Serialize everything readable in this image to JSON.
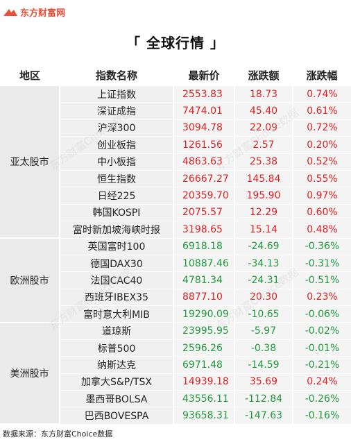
{
  "brand": {
    "logo_text": "东方财富网"
  },
  "title": "「 全球行情 」",
  "columns": [
    "地区",
    "指数名称",
    "最新价",
    "涨跌额",
    "涨跌幅"
  ],
  "colors": {
    "up": "#e02020",
    "down": "#1f9a3a",
    "brand": "#e8503a"
  },
  "regions": [
    {
      "name": "亚太股市",
      "rows": [
        {
          "name": "上证指数",
          "price": "2553.83",
          "change": "18.73",
          "pct": "0.74%",
          "dir": "up"
        },
        {
          "name": "深证成指",
          "price": "7474.01",
          "change": "45.40",
          "pct": "0.61%",
          "dir": "up"
        },
        {
          "name": "沪深300",
          "price": "3094.78",
          "change": "22.09",
          "pct": "0.72%",
          "dir": "up"
        },
        {
          "name": "创业板指",
          "price": "1261.56",
          "change": "2.57",
          "pct": "0.20%",
          "dir": "up"
        },
        {
          "name": "中小板指",
          "price": "4863.63",
          "change": "25.38",
          "pct": "0.52%",
          "dir": "up"
        },
        {
          "name": "恒生指数",
          "price": "26667.27",
          "change": "145.84",
          "pct": "0.55%",
          "dir": "up"
        },
        {
          "name": "日经225",
          "price": "20359.70",
          "change": "195.90",
          "pct": "0.97%",
          "dir": "up"
        },
        {
          "name": "韩国KOSPI",
          "price": "2075.57",
          "change": "12.29",
          "pct": "0.60%",
          "dir": "up"
        },
        {
          "name": "富时新加坡海峡时报",
          "price": "3198.65",
          "change": "15.14",
          "pct": "0.48%",
          "dir": "up"
        }
      ]
    },
    {
      "name": "欧洲股市",
      "rows": [
        {
          "name": "英国富时100",
          "price": "6918.18",
          "change": "-24.69",
          "pct": "-0.36%",
          "dir": "down"
        },
        {
          "name": "德国DAX30",
          "price": "10887.46",
          "change": "-34.13",
          "pct": "-0.31%",
          "dir": "down"
        },
        {
          "name": "法国CAC40",
          "price": "4781.34",
          "change": "-24.31",
          "pct": "-0.51%",
          "dir": "down"
        },
        {
          "name": "西班牙IBEX35",
          "price": "8877.10",
          "change": "20.30",
          "pct": "0.23%",
          "dir": "up"
        },
        {
          "name": "富时意大利MIB",
          "price": "19290.09",
          "change": "-10.65",
          "pct": "-0.06%",
          "dir": "down"
        }
      ]
    },
    {
      "name": "美洲股市",
      "rows": [
        {
          "name": "道琼斯",
          "price": "23995.95",
          "change": "-5.97",
          "pct": "-0.02%",
          "dir": "down"
        },
        {
          "name": "标普500",
          "price": "2596.26",
          "change": "-0.38",
          "pct": "-0.01%",
          "dir": "down"
        },
        {
          "name": "纳斯达克",
          "price": "6971.48",
          "change": "-14.59",
          "pct": "-0.21%",
          "dir": "down"
        },
        {
          "name": "加拿大S&P/TSX",
          "price": "14939.18",
          "change": "35.69",
          "pct": "0.24%",
          "dir": "up"
        },
        {
          "name": "墨西哥BOLSA",
          "price": "43556.11",
          "change": "-112.84",
          "pct": "-0.26%",
          "dir": "down"
        },
        {
          "name": "巴西BOVESPA",
          "price": "93658.31",
          "change": "-147.63",
          "pct": "-0.16%",
          "dir": "down"
        }
      ]
    }
  ],
  "source": "数据来源：东方财富Choice数据",
  "watermark": "东方财富Choice数据"
}
